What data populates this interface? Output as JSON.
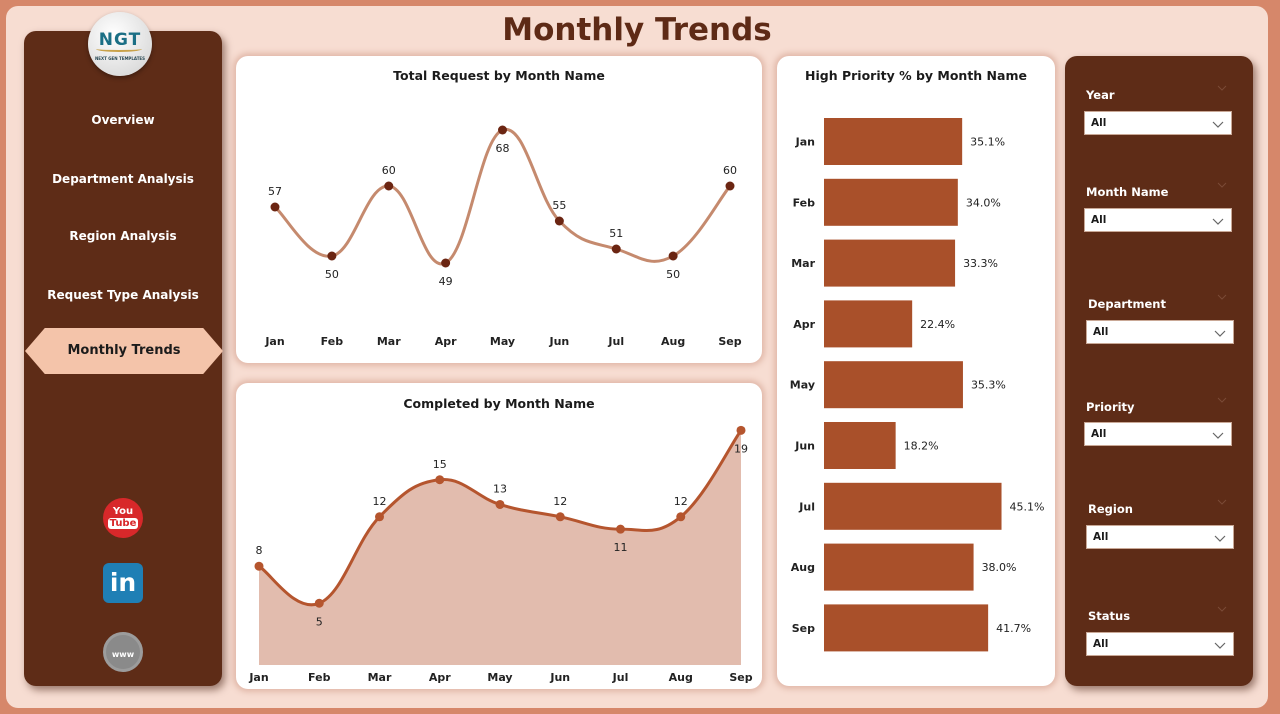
{
  "page": {
    "title": "Monthly Trends"
  },
  "logo": {
    "mark": "NGT",
    "subtitle": "NEXT GEN TEMPLATES"
  },
  "nav": {
    "items": [
      {
        "label": "Overview"
      },
      {
        "label": "Department Analysis"
      },
      {
        "label": "Region Analysis"
      },
      {
        "label": "Request Type Analysis"
      },
      {
        "label": "Monthly Trends",
        "active": true
      }
    ]
  },
  "social": {
    "youtube": {
      "icon": "youtube-icon",
      "top": "You",
      "bottom": "Tube"
    },
    "linkedin": {
      "icon": "linkedin-icon",
      "text": "in"
    },
    "website": {
      "icon": "globe-www-icon",
      "text": "www"
    }
  },
  "filters": [
    {
      "label": "Year",
      "value": "All"
    },
    {
      "label": "Month Name",
      "value": "All"
    },
    {
      "label": "Department",
      "value": "All"
    },
    {
      "label": "Priority",
      "value": "All"
    },
    {
      "label": "Region",
      "value": "All"
    },
    {
      "label": "Status",
      "value": "All"
    }
  ],
  "colors": {
    "brown_dark": "#5e2c17",
    "line_total": "#c58a6e",
    "marker_total": "#6b2512",
    "line_completed": "#b5552e",
    "area_completed": "#e2bcae",
    "bar": "#a9502a",
    "accent_tab": "#f4c4aa"
  },
  "chart_data": [
    {
      "type": "line",
      "title": "Total Request by Month Name",
      "categories": [
        "Jan",
        "Feb",
        "Mar",
        "Apr",
        "May",
        "Jun",
        "Jul",
        "Aug",
        "Sep"
      ],
      "values": [
        57,
        50,
        60,
        49,
        68,
        55,
        51,
        50,
        60
      ],
      "labels": [
        "57",
        "50",
        "60",
        "49",
        "68",
        "55",
        "51",
        "50",
        "60"
      ],
      "label_position": [
        "above",
        "below",
        "above",
        "below",
        "below",
        "above",
        "above",
        "below",
        "above"
      ],
      "ylim": [
        46,
        70
      ],
      "smooth": true,
      "grid": false
    },
    {
      "type": "area",
      "title": "Completed by Month Name",
      "categories": [
        "Jan",
        "Feb",
        "Mar",
        "Apr",
        "May",
        "Jun",
        "Jul",
        "Aug",
        "Sep"
      ],
      "values": [
        8,
        5,
        12,
        15,
        13,
        12,
        11,
        12,
        19
      ],
      "labels": [
        "8",
        "5",
        "12",
        "15",
        "13",
        "12",
        "11",
        "12",
        "19"
      ],
      "label_position": [
        "above",
        "below",
        "above",
        "above",
        "above",
        "above",
        "below",
        "above",
        "below"
      ],
      "ylim": [
        0,
        20
      ],
      "smooth": true,
      "grid": false
    },
    {
      "type": "bar",
      "orientation": "horizontal",
      "title": "High Priority % by Month Name",
      "categories": [
        "Jan",
        "Feb",
        "Mar",
        "Apr",
        "May",
        "Jun",
        "Jul",
        "Aug",
        "Sep"
      ],
      "values": [
        35.1,
        34.0,
        33.3,
        22.4,
        35.3,
        18.2,
        45.1,
        38.0,
        41.7
      ],
      "labels": [
        "35.1%",
        "34.0%",
        "33.3%",
        "22.4%",
        "35.3%",
        "18.2%",
        "45.1%",
        "38.0%",
        "41.7%"
      ],
      "xlim": [
        0,
        47
      ],
      "grid": false
    }
  ]
}
